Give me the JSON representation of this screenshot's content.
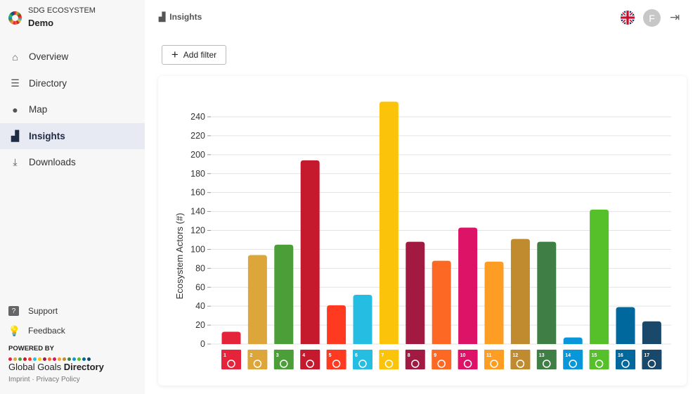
{
  "brand": {
    "subtitle": "SDG ECOSYSTEM",
    "title": "Demo"
  },
  "nav": [
    {
      "label": "Overview",
      "icon": "home-icon"
    },
    {
      "label": "Directory",
      "icon": "list-icon"
    },
    {
      "label": "Map",
      "icon": "map-pin-icon"
    },
    {
      "label": "Insights",
      "icon": "bar-chart-icon",
      "active": true
    },
    {
      "label": "Downloads",
      "icon": "download-icon"
    }
  ],
  "bottom": {
    "support": "Support",
    "feedback": "Feedback",
    "powered_by": "POWERED BY",
    "ggd_light": "Global Goals ",
    "ggd_bold": "Directory",
    "imprint": "Imprint",
    "sep": " · ",
    "privacy": "Privacy Policy"
  },
  "header": {
    "title": "Insights",
    "avatar_letter": "F"
  },
  "toolbar": {
    "add_filter": "Add filter"
  },
  "colors": [
    "#E5243B",
    "#DDA63A",
    "#4C9F38",
    "#C5192D",
    "#FF3A21",
    "#26BDE2",
    "#FCC30B",
    "#A21942",
    "#FD6925",
    "#DD1367",
    "#FD9D24",
    "#BF8B2E",
    "#3F7E44",
    "#0A97D9",
    "#56C02B",
    "#00689D",
    "#19486A"
  ],
  "chart_data": {
    "type": "bar",
    "ylabel": "Ecosystem Actors (#)",
    "categories": [
      "1",
      "2",
      "3",
      "4",
      "5",
      "6",
      "7",
      "8",
      "9",
      "10",
      "11",
      "12",
      "13",
      "14",
      "15",
      "16",
      "17"
    ],
    "values": [
      13,
      94,
      105,
      194,
      41,
      52,
      256,
      108,
      88,
      123,
      87,
      111,
      108,
      7,
      142,
      39,
      24
    ],
    "ylim": [
      0,
      260
    ],
    "yticks": [
      0,
      20,
      40,
      60,
      80,
      100,
      120,
      140,
      160,
      180,
      200,
      220,
      240
    ],
    "grid": true
  }
}
